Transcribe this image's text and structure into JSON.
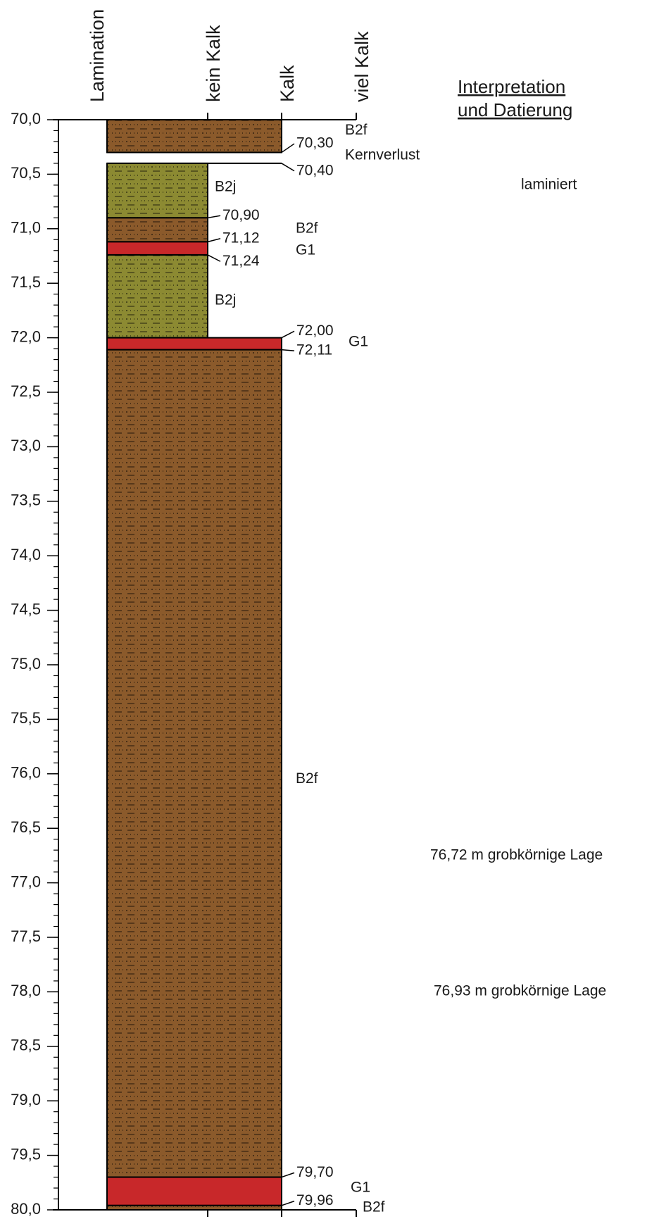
{
  "columns": {
    "headers": [
      "Lamination",
      "kein Kalk",
      "Kalk",
      "viel Kalk"
    ]
  },
  "depth_axis": {
    "range": [
      70,
      80
    ],
    "minor_step": 0.1,
    "ticks": [
      {
        "value": 70,
        "label": "70,0"
      },
      {
        "value": 70.5,
        "label": "70,5"
      },
      {
        "value": 71,
        "label": "71,0"
      },
      {
        "value": 71.5,
        "label": "71,5"
      },
      {
        "value": 72,
        "label": "72,0"
      },
      {
        "value": 72.5,
        "label": "72,5"
      },
      {
        "value": 73,
        "label": "73,0"
      },
      {
        "value": 73.5,
        "label": "73,5"
      },
      {
        "value": 74,
        "label": "74,0"
      },
      {
        "value": 74.5,
        "label": "74,5"
      },
      {
        "value": 75,
        "label": "75,0"
      },
      {
        "value": 75.5,
        "label": "75,5"
      },
      {
        "value": 76,
        "label": "76,0"
      },
      {
        "value": 76.5,
        "label": "76,5"
      },
      {
        "value": 77,
        "label": "77,0"
      },
      {
        "value": 77.5,
        "label": "77,5"
      },
      {
        "value": 78,
        "label": "78,0"
      },
      {
        "value": 78.5,
        "label": "78,5"
      },
      {
        "value": 79,
        "label": "79,0"
      },
      {
        "value": 79.5,
        "label": "79,5"
      },
      {
        "value": 80,
        "label": "80,0"
      }
    ]
  },
  "layers": [
    {
      "name": "B2f",
      "top": 70,
      "bottom": 70.3,
      "color": "#8b5a2b",
      "hatched": true,
      "calcium_level": 2
    },
    {
      "name": "Kernverlust",
      "top": 70.3,
      "bottom": 70.4,
      "color": "#ffffff",
      "hatched": false,
      "calcium_level": 2
    },
    {
      "name": "B2j",
      "top": 70.4,
      "bottom": 70.9,
      "color": "#8c8a32",
      "hatched": true,
      "calcium_level": 1
    },
    {
      "name": "B2f",
      "top": 70.9,
      "bottom": 71.12,
      "color": "#8b5a2b",
      "hatched": true,
      "calcium_level": 1
    },
    {
      "name": "G1",
      "top": 71.12,
      "bottom": 71.24,
      "color": "#c8282a",
      "hatched": false,
      "calcium_level": 1
    },
    {
      "name": "B2j",
      "top": 71.24,
      "bottom": 72,
      "color": "#8c8a32",
      "hatched": true,
      "calcium_level": 1
    },
    {
      "name": "G1",
      "top": 72,
      "bottom": 72.11,
      "color": "#c8282a",
      "hatched": false,
      "calcium_level": 2
    },
    {
      "name": "B2f",
      "top": 72.11,
      "bottom": 79.7,
      "color": "#8b5a2b",
      "hatched": true,
      "calcium_level": 2
    },
    {
      "name": "G1",
      "top": 79.7,
      "bottom": 79.96,
      "color": "#c8282a",
      "hatched": false,
      "calcium_level": 2
    },
    {
      "name": "B2f",
      "top": 79.96,
      "bottom": 80,
      "color": "#8b5a2b",
      "hatched": true,
      "calcium_level": 2
    }
  ],
  "boundaries": [
    {
      "value": 70.3,
      "label": "70,30"
    },
    {
      "value": 70.4,
      "label": "70,40"
    },
    {
      "value": 70.9,
      "label": "70,90"
    },
    {
      "value": 71.12,
      "label": "71,12"
    },
    {
      "value": 71.24,
      "label": "71,24"
    },
    {
      "value": 72,
      "label": "72,00"
    },
    {
      "value": 72.11,
      "label": "72,11"
    },
    {
      "value": 79.7,
      "label": "79,70"
    },
    {
      "value": 79.96,
      "label": "79,96"
    }
  ],
  "interpretation": {
    "title_line1": "Interpretation",
    "title_line2": "und Datierung",
    "notes": [
      "laminiert",
      "76,72 m grobkörnige Lage",
      "76,93 m grobkörnige Lage"
    ]
  }
}
